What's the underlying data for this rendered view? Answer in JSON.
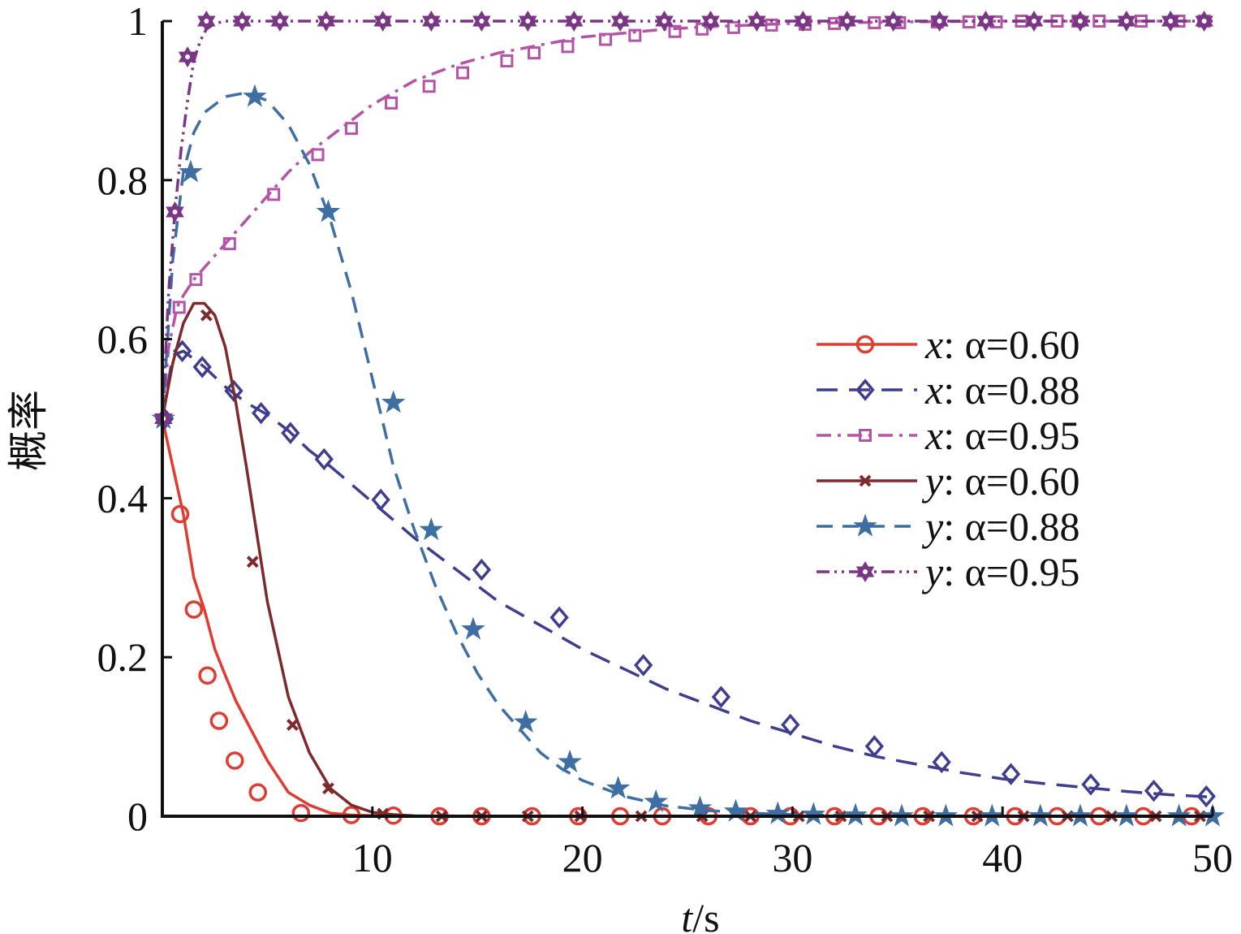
{
  "chart_data": {
    "type": "line",
    "title": "",
    "xlabel_var": "t",
    "xlabel_unit": "/s",
    "ylabel": "概率",
    "xlim": [
      0,
      50
    ],
    "ylim": [
      0,
      1
    ],
    "xticks": [
      10,
      20,
      30,
      40,
      50
    ],
    "xtick_labels": [
      "10",
      "20",
      "30",
      "40",
      "50"
    ],
    "yticks": [
      0,
      0.2,
      0.4,
      0.6,
      0.8,
      1
    ],
    "ytick_labels": [
      "0",
      "0.2",
      "0.4",
      "0.6",
      "0.8",
      "1"
    ],
    "grid": false,
    "legend_position": "right",
    "series": [
      {
        "name": "x: α=0.60",
        "var": "x",
        "param": ": α=0.60",
        "color": "#e03c32",
        "dash": "solid",
        "marker": "circle",
        "x": [
          0,
          0.5,
          1,
          1.5,
          2,
          2.5,
          3,
          3.5,
          4,
          5,
          6,
          7,
          8,
          9,
          10,
          11,
          12,
          13,
          15,
          20,
          25,
          30,
          35,
          40,
          45,
          50
        ],
        "y": [
          0.5,
          0.44,
          0.38,
          0.3,
          0.26,
          0.21,
          0.177,
          0.145,
          0.12,
          0.07,
          0.03,
          0.014,
          0.004,
          0.0015,
          0.0008,
          0.0004,
          0.0002,
          0,
          0,
          0,
          0,
          0,
          0,
          0,
          0,
          0
        ],
        "marker_x": [
          0.85,
          1.5,
          2.15,
          2.7,
          3.45,
          4.55,
          6.6,
          9.0,
          11.0,
          13.2,
          15.2,
          17.6,
          19.8,
          21.8,
          23.8,
          26.0,
          28.0,
          29.9,
          32.0,
          34.1,
          36.2,
          38.6,
          40.6,
          42.6,
          44.6,
          46.7,
          49.0
        ],
        "marker_y": [
          0.38,
          0.26,
          0.177,
          0.12,
          0.07,
          0.03,
          0.004,
          0.0015,
          0.0008,
          0,
          0,
          0,
          0,
          0,
          0,
          0,
          0,
          0,
          0,
          0,
          0,
          0,
          0,
          0,
          0,
          0,
          0
        ]
      },
      {
        "name": "x: α=0.88",
        "var": "x",
        "param": ": α=0.88",
        "color": "#3e3d8f",
        "dash": "long",
        "marker": "diamond",
        "x": [
          0,
          0.5,
          1,
          2,
          3,
          4,
          5,
          6,
          7,
          8,
          10,
          12,
          14,
          16,
          18,
          20,
          22,
          24,
          26,
          28,
          30,
          32,
          34,
          36,
          38,
          40,
          42,
          44,
          46,
          48,
          50
        ],
        "y": [
          0.5,
          0.58,
          0.585,
          0.565,
          0.54,
          0.52,
          0.505,
          0.485,
          0.46,
          0.44,
          0.395,
          0.35,
          0.31,
          0.27,
          0.24,
          0.21,
          0.185,
          0.16,
          0.14,
          0.12,
          0.104,
          0.088,
          0.075,
          0.065,
          0.055,
          0.047,
          0.041,
          0.036,
          0.031,
          0.027,
          0.024
        ],
        "marker_x": [
          0.1,
          0.95,
          1.9,
          3.4,
          4.7,
          6.1,
          7.7,
          10.4,
          15.2,
          18.9,
          22.9,
          26.6,
          29.9,
          33.9,
          37.1,
          40.4,
          44.2,
          47.2,
          49.7
        ],
        "marker_y": [
          0.5,
          0.585,
          0.565,
          0.535,
          0.507,
          0.482,
          0.449,
          0.398,
          0.31,
          0.25,
          0.19,
          0.15,
          0.115,
          0.088,
          0.068,
          0.053,
          0.04,
          0.032,
          0.025
        ]
      },
      {
        "name": "x: α=0.95",
        "var": "x",
        "param": ": α=0.95",
        "color": "#b553a8",
        "dash": "dashdot",
        "marker": "square",
        "x": [
          0,
          0.3,
          0.7,
          1,
          1.5,
          2,
          3,
          4,
          5,
          6,
          7,
          8,
          9,
          10,
          11,
          12,
          14,
          16,
          18,
          20,
          22,
          24,
          26,
          28,
          30,
          35,
          40,
          45,
          50
        ],
        "y": [
          0.5,
          0.59,
          0.64,
          0.655,
          0.675,
          0.69,
          0.72,
          0.75,
          0.78,
          0.81,
          0.835,
          0.855,
          0.875,
          0.895,
          0.91,
          0.925,
          0.945,
          0.96,
          0.97,
          0.98,
          0.985,
          0.99,
          0.993,
          0.995,
          0.997,
          0.999,
          1,
          1,
          1
        ],
        "marker_x": [
          0.8,
          1.6,
          3.2,
          5.3,
          7.4,
          9.0,
          10.9,
          12.7,
          14.3,
          16.4,
          17.7,
          19.3,
          21.1,
          22.5,
          24.4,
          25.7,
          27.2,
          29.0,
          30.6,
          32.0,
          33.9,
          35.1,
          36.9,
          38.4,
          39.7,
          40.9,
          42.6,
          43.6,
          44.6,
          46.6,
          48.4,
          49.6
        ],
        "marker_y": [
          0.64,
          0.675,
          0.72,
          0.782,
          0.832,
          0.865,
          0.897,
          0.918,
          0.935,
          0.95,
          0.96,
          0.968,
          0.977,
          0.982,
          0.987,
          0.99,
          0.992,
          0.995,
          0.996,
          0.997,
          0.998,
          0.998,
          0.999,
          0.999,
          0.999,
          1,
          1,
          1,
          1,
          1,
          1,
          1
        ]
      },
      {
        "name": "y: α=0.60",
        "var": "y",
        "param": ": α=0.60",
        "color": "#7e2a2c",
        "dash": "solid",
        "marker": "x",
        "x": [
          0,
          0.5,
          1,
          1.5,
          2,
          2.5,
          3,
          3.5,
          4,
          5,
          6,
          7,
          8,
          9,
          10,
          11,
          12,
          14,
          16,
          20,
          25,
          30,
          35,
          40,
          45,
          50
        ],
        "y": [
          0.5,
          0.57,
          0.62,
          0.645,
          0.645,
          0.63,
          0.59,
          0.52,
          0.44,
          0.27,
          0.15,
          0.08,
          0.035,
          0.014,
          0.005,
          0.002,
          0.0005,
          0,
          0,
          0,
          0,
          0,
          0,
          0,
          0,
          0
        ],
        "marker_x": [
          2.1,
          4.3,
          6.2,
          7.9,
          10.5,
          13.3,
          15.2,
          17.4,
          19.9,
          22.8,
          25.7,
          28.0,
          30.3,
          32.3,
          34.5,
          36.5,
          38.8,
          41.0,
          43.1,
          45.2,
          47.3,
          49.4
        ],
        "marker_y": [
          0.63,
          0.32,
          0.115,
          0.035,
          0.003,
          0,
          0,
          0,
          0,
          0,
          0,
          0,
          0,
          0,
          0,
          0,
          0,
          0,
          0,
          0,
          0,
          0
        ]
      },
      {
        "name": "y: α=0.88",
        "var": "y",
        "param": ": α=0.88",
        "color": "#3f6ea3",
        "dash": "medium",
        "marker": "star",
        "x": [
          0,
          0.5,
          1,
          1.5,
          2,
          3,
          4,
          5,
          6,
          7,
          8,
          9,
          10,
          11,
          12,
          13,
          14,
          15,
          16,
          17,
          18,
          19,
          20,
          22,
          24,
          26,
          28,
          30,
          35,
          40,
          45,
          50
        ],
        "y": [
          0.5,
          0.7,
          0.81,
          0.86,
          0.885,
          0.905,
          0.91,
          0.9,
          0.87,
          0.82,
          0.75,
          0.66,
          0.55,
          0.44,
          0.36,
          0.29,
          0.23,
          0.18,
          0.14,
          0.11,
          0.08,
          0.06,
          0.045,
          0.025,
          0.013,
          0.007,
          0.004,
          0.002,
          0,
          0,
          0,
          0
        ],
        "marker_x": [
          0.05,
          1.35,
          4.4,
          7.9,
          11.0,
          12.8,
          14.8,
          17.3,
          19.4,
          21.7,
          23.5,
          25.6,
          27.3,
          29.3,
          31.0,
          33.0,
          35.2,
          37.3,
          39.5,
          41.8,
          43.7,
          45.9,
          48.4,
          50.0
        ],
        "marker_y": [
          0.5,
          0.81,
          0.905,
          0.76,
          0.52,
          0.36,
          0.235,
          0.118,
          0.068,
          0.035,
          0.018,
          0.01,
          0.006,
          0.003,
          0.002,
          0.001,
          0,
          0,
          0,
          0,
          0,
          0,
          0,
          0
        ]
      },
      {
        "name": "y: α=0.95",
        "var": "y",
        "param": ": α=0.95",
        "color": "#7a3585",
        "dash": "dashdotdot",
        "marker": "hexagram",
        "x": [
          0,
          0.3,
          0.6,
          0.9,
          1.2,
          1.5,
          1.8,
          2.1,
          2.5,
          3,
          3.5,
          4,
          5,
          10,
          20,
          30,
          40,
          50
        ],
        "y": [
          0.5,
          0.66,
          0.76,
          0.84,
          0.9,
          0.95,
          0.975,
          0.99,
          0.997,
          1,
          1,
          1,
          1,
          1,
          1,
          1,
          1,
          1
        ],
        "marker_x": [
          0.05,
          0.6,
          1.2,
          2.1,
          3.8,
          5.6,
          7.8,
          10.5,
          12.8,
          15.2,
          17.4,
          19.6,
          21.8,
          23.9,
          26.1,
          28.3,
          30.5,
          32.6,
          34.8,
          37.0,
          39.2,
          41.5,
          43.7,
          45.9,
          48.0,
          49.6
        ],
        "marker_y": [
          0.5,
          0.76,
          0.955,
          1,
          1,
          1,
          1,
          1,
          1,
          1,
          1,
          1,
          1,
          1,
          1,
          1,
          1,
          1,
          1,
          1,
          1,
          1,
          1,
          1,
          1,
          1
        ]
      }
    ]
  }
}
